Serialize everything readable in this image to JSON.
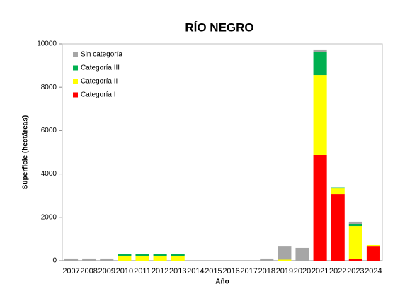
{
  "chart_data": {
    "type": "stacked_bar",
    "title": "RÍO NEGRO",
    "x_label": "Año",
    "y_label": "Superficie (hectáreas)",
    "categories": [
      "2007",
      "2008",
      "2009",
      "2010",
      "2011",
      "2012",
      "2013",
      "2014",
      "2015",
      "2016",
      "2017",
      "2018",
      "2019",
      "2020",
      "2021",
      "2022",
      "2023",
      "2024"
    ],
    "series": [
      {
        "name": "Sin categoría",
        "color": "#a6a6a6",
        "values": [
          100,
          100,
          100,
          0,
          0,
          0,
          0,
          0,
          0,
          0,
          0,
          100,
          600,
          590,
          100,
          0,
          100,
          0
        ]
      },
      {
        "name": "Categoría III",
        "color": "#00b050",
        "values": [
          0,
          0,
          0,
          100,
          100,
          100,
          100,
          0,
          0,
          0,
          0,
          0,
          0,
          0,
          1080,
          50,
          100,
          0
        ]
      },
      {
        "name": "Categoría II",
        "color": "#ffff00",
        "values": [
          0,
          0,
          0,
          200,
          200,
          200,
          200,
          0,
          0,
          0,
          0,
          0,
          50,
          0,
          3690,
          260,
          1520,
          70
        ]
      },
      {
        "name": "Categoría I",
        "color": "#ff0000",
        "values": [
          0,
          0,
          0,
          0,
          0,
          0,
          0,
          0,
          0,
          0,
          0,
          0,
          0,
          0,
          4870,
          3070,
          80,
          650
        ]
      }
    ],
    "ylim": [
      0,
      10000
    ],
    "yticks": [
      0,
      2000,
      4000,
      6000,
      8000,
      10000
    ],
    "legend": "top-left"
  }
}
